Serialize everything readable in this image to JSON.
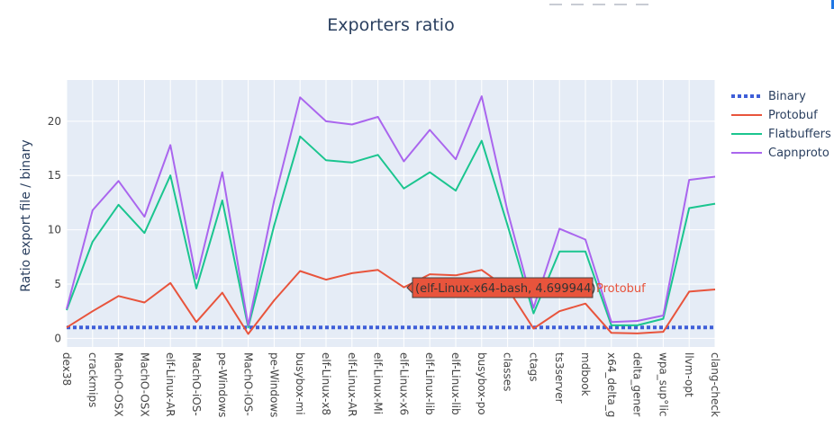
{
  "chart_data": {
    "type": "line",
    "title": "Exporters ratio",
    "xlabel": "",
    "ylabel": "Ratio export file / binary",
    "ylim": [
      -0.8,
      23.8
    ],
    "yticks": [
      0,
      5,
      10,
      15,
      20
    ],
    "grid": true,
    "legend": "right",
    "categories": [
      "dex38",
      "crackmips",
      "MachO-OSX",
      "MachO-OSX",
      "elf-Linux-AR",
      "MachO-iOS-",
      "pe-Windows",
      "MachO-iOS-",
      "pe-Windows",
      "busybox-mi",
      "elf-Linux-x8",
      "elf-Linux-AR",
      "elf-Linux-Mi",
      "elf-Linux-x6",
      "elf-Linux-lib",
      "elf-Linux-lib",
      "busybox-po",
      "classes",
      "ctags",
      "ts3server",
      "mdbook",
      "x64_delta_g",
      "delta_gener",
      "wpa_sup°lic",
      "llvm-opt",
      "clang-check"
    ],
    "series": [
      {
        "name": "Binary",
        "color": "#3e5ed8",
        "dash": true,
        "values": [
          1,
          1,
          1,
          1,
          1,
          1,
          1,
          1,
          1,
          1,
          1,
          1,
          1,
          1,
          1,
          1,
          1,
          1,
          1,
          1,
          1,
          1,
          1,
          1,
          1,
          1
        ]
      },
      {
        "name": "Protobuf",
        "color": "#e8543c",
        "values": [
          1.0,
          2.5,
          3.9,
          3.3,
          5.1,
          1.5,
          4.2,
          0.4,
          3.5,
          6.2,
          5.4,
          6.0,
          6.3,
          4.7,
          5.9,
          5.8,
          6.3,
          4.6,
          0.9,
          2.5,
          3.2,
          0.5,
          0.45,
          0.6,
          4.3,
          4.5
        ]
      },
      {
        "name": "Flatbuffers",
        "color": "#1bc58f",
        "values": [
          2.6,
          8.9,
          12.3,
          9.7,
          15.0,
          4.6,
          12.7,
          1.0,
          10.4,
          18.6,
          16.4,
          16.2,
          16.9,
          13.8,
          15.3,
          13.6,
          18.2,
          10.4,
          2.3,
          8.0,
          8.0,
          1.2,
          1.2,
          1.8,
          12.0,
          12.4
        ]
      },
      {
        "name": "Capnproto",
        "color": "#aa66ee",
        "values": [
          2.7,
          11.8,
          14.5,
          11.2,
          17.8,
          5.5,
          15.3,
          1.2,
          12.7,
          22.2,
          20.0,
          19.7,
          20.4,
          16.3,
          19.2,
          16.5,
          22.3,
          11.7,
          2.8,
          10.1,
          9.1,
          1.5,
          1.6,
          2.1,
          14.6,
          14.9
        ]
      }
    ],
    "hover": {
      "text": "(elf-Linux-x64-bash, 4.699944)",
      "series": "Protobuf"
    }
  }
}
